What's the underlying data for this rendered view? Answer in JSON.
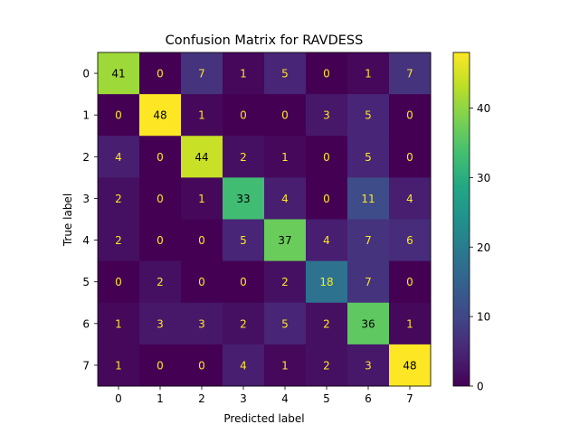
{
  "chart_data": {
    "type": "heatmap",
    "title": "Confusion Matrix for RAVDESS",
    "xlabel": "Predicted label",
    "ylabel": "True label",
    "x_categories": [
      "0",
      "1",
      "2",
      "3",
      "4",
      "5",
      "6",
      "7"
    ],
    "y_categories": [
      "0",
      "1",
      "2",
      "3",
      "4",
      "5",
      "6",
      "7"
    ],
    "matrix": [
      [
        41,
        0,
        7,
        1,
        5,
        0,
        1,
        7
      ],
      [
        0,
        48,
        1,
        0,
        0,
        3,
        5,
        0
      ],
      [
        4,
        0,
        44,
        2,
        1,
        0,
        5,
        0
      ],
      [
        2,
        0,
        1,
        33,
        4,
        0,
        11,
        4
      ],
      [
        2,
        0,
        0,
        5,
        37,
        4,
        7,
        6
      ],
      [
        0,
        2,
        0,
        0,
        2,
        18,
        7,
        0
      ],
      [
        1,
        3,
        3,
        2,
        5,
        2,
        36,
        1
      ],
      [
        1,
        0,
        0,
        4,
        1,
        2,
        3,
        48
      ]
    ],
    "colormap": "viridis",
    "vmin": 0,
    "vmax": 48,
    "colorbar_ticks": [
      0,
      10,
      20,
      30,
      40
    ]
  }
}
